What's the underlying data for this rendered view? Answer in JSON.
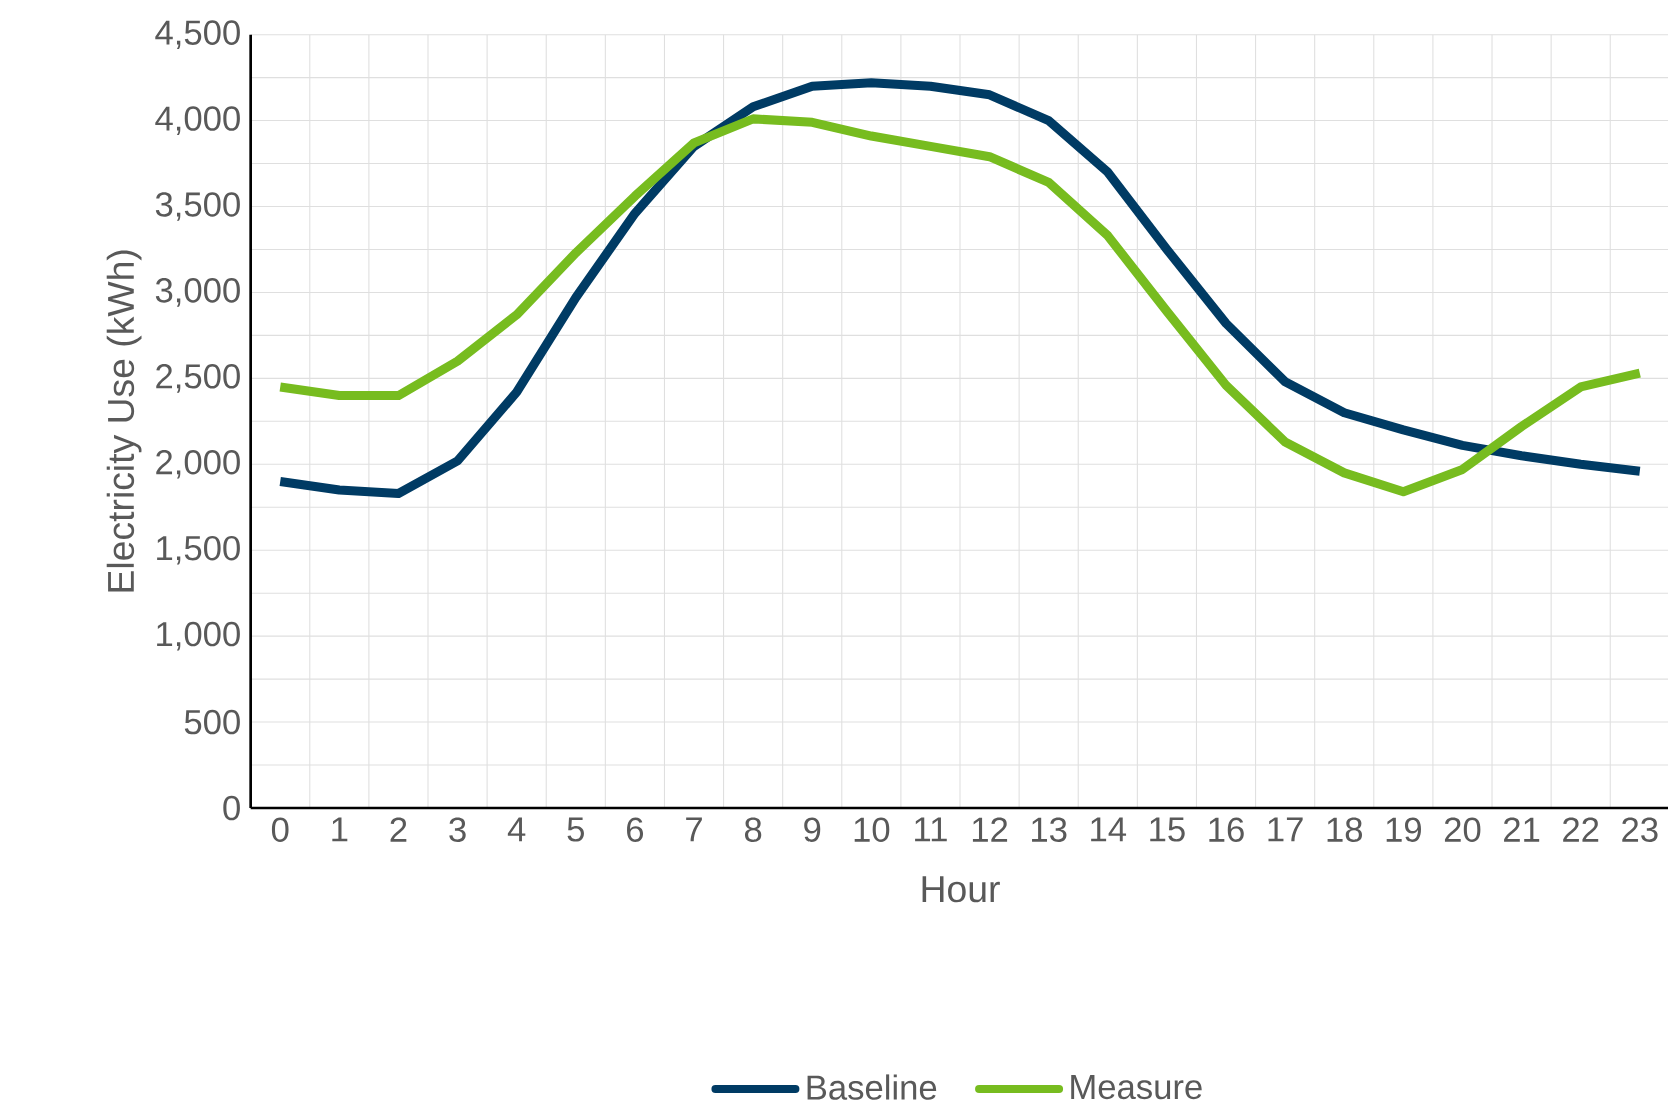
{
  "chart_data": {
    "type": "line",
    "categories": [
      "0",
      "1",
      "2",
      "3",
      "4",
      "5",
      "6",
      "7",
      "8",
      "9",
      "10",
      "11",
      "12",
      "13",
      "14",
      "15",
      "16",
      "17",
      "18",
      "19",
      "20",
      "21",
      "22",
      "23"
    ],
    "xlabel": "Hour",
    "ylabel": "Electricity Use (kWh)",
    "series": [
      {
        "name": "Baseline",
        "color": "#003b64",
        "values": [
          1900,
          1850,
          1830,
          2020,
          2420,
          2970,
          3460,
          3850,
          4080,
          4200,
          4220,
          4200,
          4150,
          4000,
          3700,
          3250,
          2820,
          2480,
          2300,
          2200,
          2110,
          2050,
          2000,
          1960
        ]
      },
      {
        "name": "Measure",
        "color": "#77bc1f",
        "values": [
          2450,
          2400,
          2400,
          2600,
          2870,
          3230,
          3560,
          3870,
          4010,
          3990,
          3910,
          3850,
          3790,
          3640,
          3330,
          2890,
          2460,
          2130,
          1950,
          1840,
          1970,
          2220,
          2450,
          2530
        ]
      }
    ],
    "ylim": [
      0,
      4500
    ],
    "yticks": [
      {
        "value": 0,
        "label": "0"
      },
      {
        "value": 500,
        "label": "500"
      },
      {
        "value": 1000,
        "label": "1,000"
      },
      {
        "value": 1500,
        "label": "1,500"
      },
      {
        "value": 2000,
        "label": "2,000"
      },
      {
        "value": 2500,
        "label": "2,500"
      },
      {
        "value": 3000,
        "label": "3,000"
      },
      {
        "value": 3500,
        "label": "3,500"
      },
      {
        "value": 4000,
        "label": "4,000"
      },
      {
        "value": 4500,
        "label": "4,500"
      }
    ],
    "grid": true,
    "legend": "bottom",
    "marker": "none",
    "line_style": "solid"
  }
}
